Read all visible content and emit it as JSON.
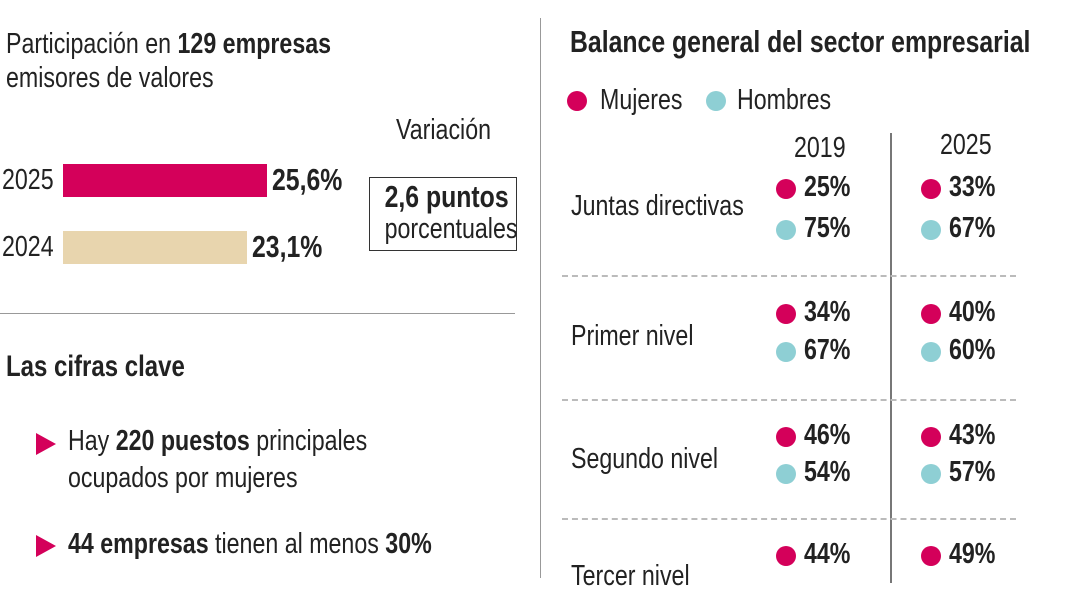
{
  "colors": {
    "mujeres": "#d4005a",
    "hombres": "#8ecfd4",
    "y2024": "#e8d5ae"
  },
  "participation": {
    "title_pre": "Participación en ",
    "title_bold": "129 empresas",
    "title_line2": "emisores de valores",
    "variation_label": "Variación",
    "variation_value": "2,6 puntos",
    "variation_unit": "porcentuales"
  },
  "chart_data": {
    "type": "bar",
    "orientation": "horizontal",
    "categories": [
      "2025",
      "2024"
    ],
    "values": [
      25.6,
      23.1
    ],
    "value_labels": [
      "25,6%",
      "23,1%"
    ]
  },
  "key_figures": {
    "title": "Las cifras clave",
    "items": [
      {
        "pre": "Hay ",
        "bold": "220 puestos",
        "post": " principales",
        "line2": "ocupados por mujeres"
      },
      {
        "pre": "",
        "bold": "44 empresas",
        "post": " tienen al menos ",
        "bold2": "30%"
      }
    ]
  },
  "balance": {
    "title": "Balance general del sector empresarial",
    "legend": [
      "Mujeres",
      "Hombres"
    ],
    "years": [
      "2019",
      "2025"
    ],
    "rows": [
      {
        "label": "Juntas directivas",
        "m2019": "25%",
        "h2019": "75%",
        "m2025": "33%",
        "h2025": "67%"
      },
      {
        "label": "Primer nivel",
        "m2019": "34%",
        "h2019": "67%",
        "m2025": "40%",
        "h2025": "60%"
      },
      {
        "label": "Segundo nivel",
        "m2019": "46%",
        "h2019": "54%",
        "m2025": "43%",
        "h2025": "57%"
      },
      {
        "label": "Tercer nivel",
        "m2019": "44%",
        "m2025": "49%"
      }
    ]
  }
}
